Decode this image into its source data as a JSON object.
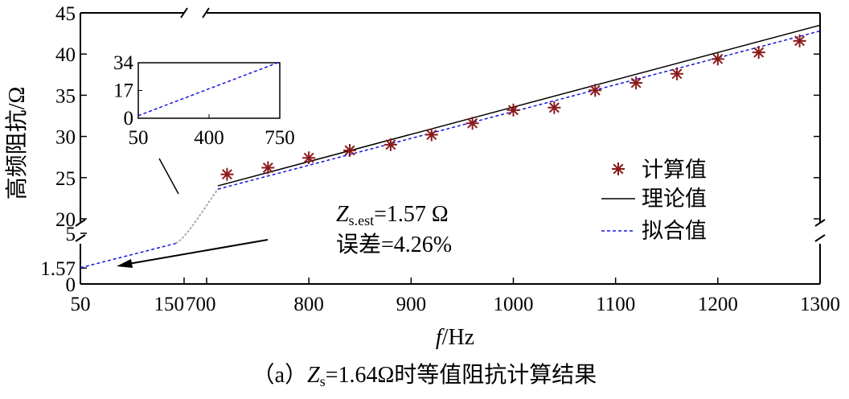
{
  "chart_data": {
    "type": "line",
    "ylabel": "高频阻抗/Ω",
    "xlabel": {
      "italic": "f",
      "rest": "/Hz"
    },
    "caption": {
      "prefix": "（a）",
      "z": "Z",
      "sub": "s",
      "rest": "=1.64Ω时等值阻抗计算结果"
    },
    "x_tick_labels_low": [
      "50",
      "150"
    ],
    "x_ticks_high": [
      700,
      800,
      900,
      1000,
      1100,
      1200,
      1300
    ],
    "y_ticks_upper": [
      20,
      25,
      30,
      35,
      40,
      45
    ],
    "y_ticks_lower": [
      {
        "value": 0,
        "label": "0"
      },
      {
        "value": 1.57,
        "label": "1.57"
      },
      {
        "value": 5,
        "label": "5"
      }
    ],
    "xlim_low": [
      50,
      150
    ],
    "xlim_high": [
      700,
      1300
    ],
    "ylim_upper": [
      20,
      45
    ],
    "ylim_lower": [
      0,
      5
    ],
    "series": [
      {
        "name": "计算值",
        "style": "marker",
        "color": "#8b1a1a",
        "x": [
          720,
          760,
          800,
          840,
          880,
          920,
          960,
          1000,
          1040,
          1080,
          1120,
          1160,
          1200,
          1240,
          1280
        ],
        "y": [
          25.4,
          26.2,
          27.4,
          28.3,
          29.0,
          30.2,
          31.6,
          33.2,
          33.5,
          35.6,
          36.5,
          37.6,
          39.4,
          40.2,
          41.6
        ]
      },
      {
        "name": "理论值",
        "style": "solid",
        "color": "#000000",
        "x": [
          711,
          1300
        ],
        "y": [
          24.0,
          43.5
        ]
      },
      {
        "name": "拟合值",
        "style": "dashed",
        "color": "#1515e0",
        "x_low": [
          50,
          142
        ],
        "y_low": [
          1.6,
          4.0
        ],
        "x": [
          711,
          1300
        ],
        "y": [
          23.6,
          42.8
        ]
      }
    ],
    "inset": {
      "x_ticks": [
        "50",
        "400",
        "750"
      ],
      "y_ticks": [
        "0",
        "17",
        "34"
      ],
      "xlim": [
        50,
        750
      ],
      "ylim": [
        0,
        34
      ],
      "line": {
        "x": [
          50,
          750
        ],
        "y": [
          1.6,
          34.5
        ]
      }
    },
    "annotation": {
      "z": "Z",
      "sub": "s.est",
      "value": "=1.57 Ω",
      "error": "误差=4.26%"
    },
    "grid": false,
    "legend_position": "right"
  }
}
